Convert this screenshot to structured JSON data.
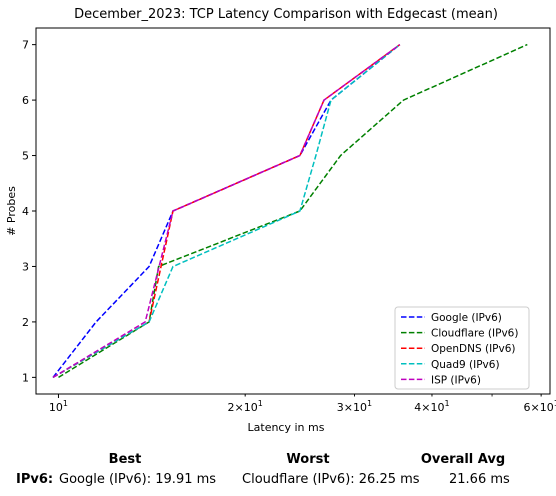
{
  "chart_data": {
    "type": "line",
    "title": "December_2023: TCP Latency Comparison with Edgecast (mean)",
    "xlabel": "Latency in ms",
    "ylabel": "# Probes",
    "x_scale": "log",
    "xlim": [
      9.2,
      62
    ],
    "ylim": [
      0.7,
      7.3
    ],
    "x_tick_labels": [
      "10^1",
      "2×10^1",
      "3×10^1",
      "4×10^1",
      "6×10^1"
    ],
    "x_tick_values": [
      10,
      20,
      30,
      40,
      60
    ],
    "y_ticks": [
      1,
      2,
      3,
      4,
      5,
      6,
      7
    ],
    "grid": false,
    "legend_position": "lower right",
    "series": [
      {
        "name": "Google (IPv6)",
        "color": "#0000ff",
        "x": [
          9.8,
          11.5,
          14.0,
          15.3,
          24.5,
          27.5,
          35.5
        ],
        "y": [
          1,
          2,
          3,
          4,
          5,
          6,
          7
        ]
      },
      {
        "name": "Cloudflare (IPv6)",
        "color": "#008000",
        "x": [
          10.0,
          14.0,
          14.5,
          24.5,
          28.5,
          36.0,
          57.0
        ],
        "y": [
          1,
          2,
          3,
          4,
          5,
          6,
          7
        ]
      },
      {
        "name": "OpenDNS (IPv6)",
        "color": "#ff0000",
        "x": [
          9.8,
          14.0,
          15.3,
          24.5,
          26.8,
          35.5
        ],
        "y": [
          1,
          2,
          4,
          5,
          6,
          7
        ]
      },
      {
        "name": "Quad9 (IPv6)",
        "color": "#00bfbf",
        "x": [
          9.8,
          14.0,
          15.3,
          24.5,
          26.0,
          27.5,
          35.5
        ],
        "y": [
          1,
          2,
          3,
          4,
          5,
          6,
          7
        ]
      },
      {
        "name": "ISP (IPv6)",
        "color": "#bf00bf",
        "x": [
          9.8,
          13.8,
          15.3,
          24.5,
          26.8,
          35.5
        ],
        "y": [
          1,
          2,
          4,
          5,
          6,
          7
        ]
      }
    ]
  },
  "summary": {
    "headers": {
      "best": "Best",
      "worst": "Worst",
      "overall": "Overall Avg"
    },
    "row_label": "IPv6:",
    "best": "Google (IPv6): 19.91 ms",
    "worst": "Cloudflare (IPv6): 26.25 ms",
    "overall": "21.66 ms"
  }
}
